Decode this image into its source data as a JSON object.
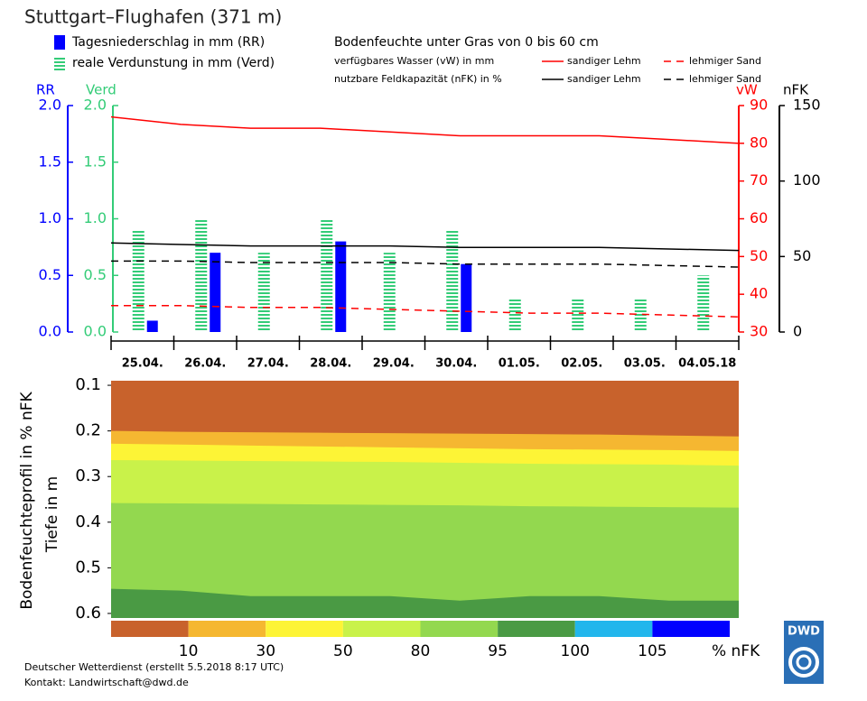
{
  "title": "Stuttgart–Flughafen (371 m)",
  "chart_data": [
    {
      "type": "bar-line",
      "categories": [
        "25.04.",
        "26.04.",
        "27.04.",
        "28.04.",
        "29.04.",
        "30.04.",
        "01.05.",
        "02.05.",
        "03.05.",
        "04.05.18"
      ],
      "ylabel": "RR",
      "ycolor": "#0000ff",
      "ylim": [
        0,
        2
      ],
      "yticks": [
        {
          "value": 0,
          "label": "0.0"
        },
        0.5,
        {
          "value": 1,
          "label": "1.0"
        },
        1.5,
        {
          "value": 2,
          "label": "2.0"
        }
      ],
      "y2label": "Verd",
      "y2color": "#33cc77",
      "y2lim": [
        0,
        2
      ],
      "y2ticks": [
        {
          "value": 0,
          "label": "0.0"
        },
        0.5,
        {
          "value": 1,
          "label": "1.0"
        },
        1.5,
        {
          "value": 2,
          "label": "2.0"
        }
      ],
      "y3label": "vW",
      "y3color": "#ff0000",
      "y3lim": [
        30,
        90
      ],
      "y3ticks": [
        30,
        40,
        50,
        60,
        70,
        80,
        90
      ],
      "y4label": "nFK",
      "y4color": "#000000",
      "y4lim": [
        0,
        150
      ],
      "y4ticks": [
        0,
        50,
        100,
        150
      ],
      "legend_title": "Bodenfeuchte unter Gras von 0 bis 60 cm",
      "group_labels": [
        "verfügbares Wasser (vW) in mm",
        "nutzbare Feldkapazität (nFK) in %"
      ],
      "series": [
        {
          "name": "Tagesniederschlag in mm (RR)",
          "kind": "bar",
          "axis": "y",
          "color": "#0000ff",
          "pattern": "solid",
          "values": [
            0.1,
            0.7,
            0,
            0.8,
            0,
            0.6,
            0,
            0,
            0,
            0
          ]
        },
        {
          "name": "reale Verdunstung in mm (Verd)",
          "kind": "bar",
          "axis": "y2",
          "color": "#33cc77",
          "pattern": "striped",
          "values": [
            0.9,
            1.0,
            0.7,
            1.0,
            0.7,
            0.9,
            0.3,
            0.3,
            0.3,
            0.5
          ]
        },
        {
          "name": "sandiger Lehm",
          "kind": "line",
          "axis": "y3",
          "group": 0,
          "color": "#ff0000",
          "dashed": false,
          "values": [
            87,
            85,
            84,
            84,
            83,
            82,
            82,
            82,
            81,
            80
          ]
        },
        {
          "name": "lehmiger Sand",
          "kind": "line",
          "axis": "y3",
          "group": 0,
          "color": "#ff0000",
          "dashed": true,
          "values": [
            37,
            37,
            36.5,
            36.5,
            36,
            35.5,
            35,
            35,
            34.5,
            34
          ]
        },
        {
          "name": "sandiger Lehm",
          "kind": "line",
          "axis": "y4",
          "group": 1,
          "color": "#000000",
          "dashed": false,
          "values": [
            59,
            58,
            57,
            57,
            57,
            56,
            56,
            56,
            55,
            54
          ]
        },
        {
          "name": "lehmiger Sand",
          "kind": "line",
          "axis": "y4",
          "group": 1,
          "color": "#000000",
          "dashed": true,
          "values": [
            47,
            47,
            46,
            46,
            46,
            45,
            45,
            45,
            44,
            43
          ]
        }
      ]
    },
    {
      "type": "contour",
      "ylabel": "Bodenfeuchteprofil in % nFK",
      "ylabel2": "Tiefe in m",
      "ylim": [
        0.09,
        0.61
      ],
      "yticks": [
        0.1,
        0.2,
        0.3,
        0.4,
        0.5,
        0.6
      ],
      "colors": [
        "#c8622c",
        "#f5b731",
        "#fdf436",
        "#c9f24a",
        "#93d84f",
        "#4a9a44"
      ],
      "boundaries": [
        {
          "values": [
            0.2,
            0.202,
            0.203,
            0.204,
            0.205,
            0.206,
            0.207,
            0.208,
            0.21,
            0.212
          ]
        },
        {
          "values": [
            0.228,
            0.23,
            0.232,
            0.234,
            0.236,
            0.238,
            0.24,
            0.241,
            0.242,
            0.244
          ]
        },
        {
          "values": [
            0.264,
            0.265,
            0.266,
            0.267,
            0.268,
            0.27,
            0.272,
            0.273,
            0.274,
            0.276
          ]
        },
        {
          "values": [
            0.358,
            0.359,
            0.36,
            0.361,
            0.362,
            0.363,
            0.365,
            0.366,
            0.367,
            0.368
          ]
        },
        {
          "values": [
            0.546,
            0.55,
            0.562,
            0.562,
            0.562,
            0.572,
            0.562,
            0.562,
            0.572,
            0.572
          ]
        }
      ],
      "colorbar": {
        "colors": [
          "#c8622c",
          "#f5b731",
          "#fdf436",
          "#c9f24a",
          "#93d84f",
          "#4a9a44",
          "#22b6ec",
          "#0000ff"
        ],
        "ticks": [
          10,
          30,
          50,
          80,
          95,
          100,
          105
        ],
        "unit_label": "% nFK"
      }
    }
  ],
  "footer": [
    "Deutscher Wetterdienst (erstellt 5.5.2018 8:17 UTC)",
    "Kontakt: Landwirtschaft@dwd.de"
  ],
  "logo": "DWD"
}
